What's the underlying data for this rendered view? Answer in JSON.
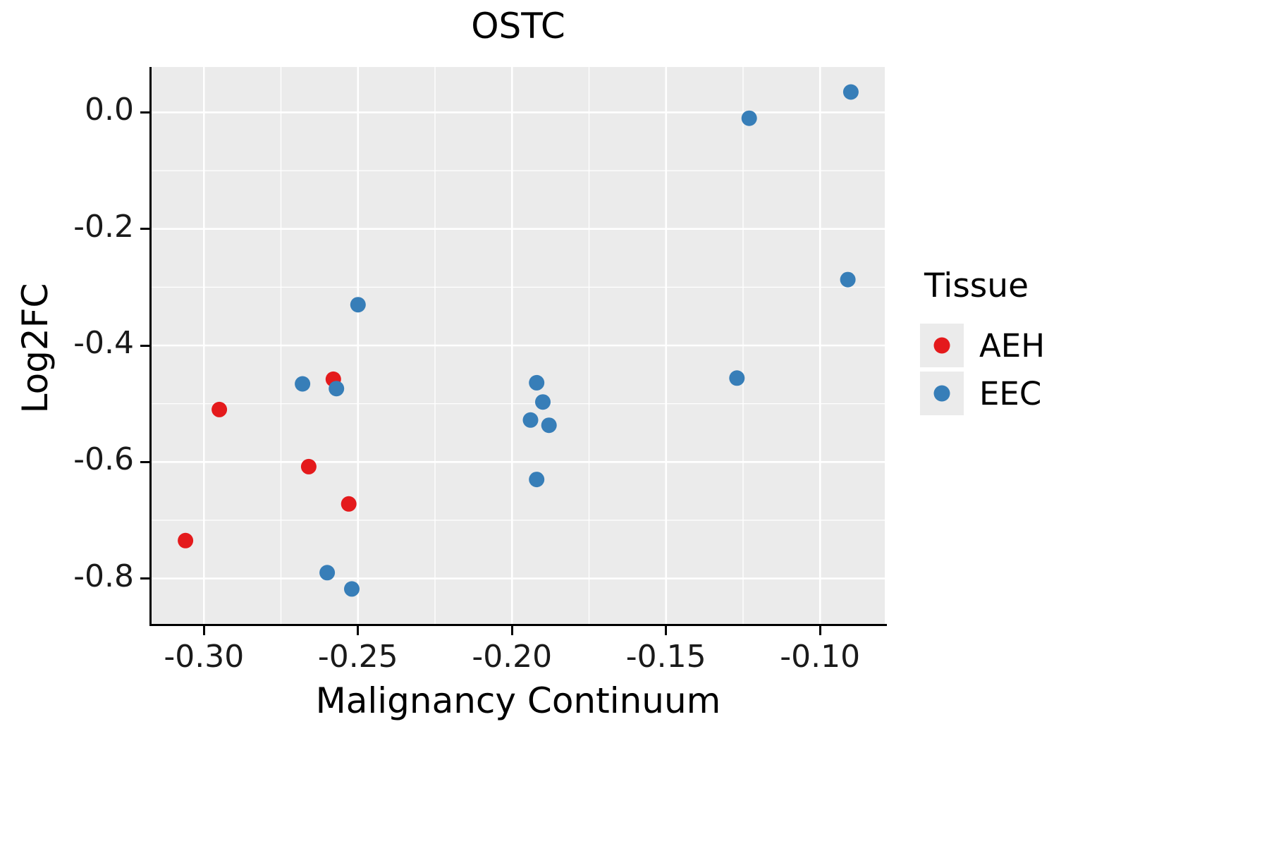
{
  "chart_data": {
    "type": "scatter",
    "title": "OSTC",
    "xlabel": "Malignancy Continuum",
    "ylabel": "Log2FC",
    "xlim": [
      -0.317,
      -0.079
    ],
    "ylim": [
      -0.878,
      0.078
    ],
    "x_ticks": [
      -0.3,
      -0.25,
      -0.2,
      -0.15,
      -0.1
    ],
    "x_tick_labels": [
      "-0.30",
      "-0.25",
      "-0.20",
      "-0.15",
      "-0.10"
    ],
    "y_ticks": [
      0.0,
      -0.2,
      -0.4,
      -0.6,
      -0.8
    ],
    "y_tick_labels": [
      "0.0",
      "-0.2",
      "-0.4",
      "-0.6",
      "-0.8"
    ],
    "grid": true,
    "panel_bg": "#EBEBEB",
    "grid_color": "#FFFFFF",
    "point_radius": 11,
    "legend": {
      "title": "Tissue",
      "position": "right",
      "entries": [
        {
          "label": "AEH",
          "color": "#E41A1C"
        },
        {
          "label": "EEC",
          "color": "#377EB8"
        }
      ]
    },
    "series": [
      {
        "name": "AEH",
        "color": "#E41A1C",
        "points": [
          [
            -0.306,
            -0.735
          ],
          [
            -0.295,
            -0.51
          ],
          [
            -0.266,
            -0.608
          ],
          [
            -0.258,
            -0.458
          ],
          [
            -0.253,
            -0.672
          ]
        ]
      },
      {
        "name": "EEC",
        "color": "#377EB8",
        "points": [
          [
            -0.268,
            -0.466
          ],
          [
            -0.257,
            -0.474
          ],
          [
            -0.25,
            -0.33
          ],
          [
            -0.26,
            -0.79
          ],
          [
            -0.252,
            -0.818
          ],
          [
            -0.192,
            -0.464
          ],
          [
            -0.19,
            -0.497
          ],
          [
            -0.194,
            -0.528
          ],
          [
            -0.188,
            -0.537
          ],
          [
            -0.192,
            -0.63
          ],
          [
            -0.127,
            -0.456
          ],
          [
            -0.123,
            -0.01
          ],
          [
            -0.09,
            0.035
          ],
          [
            -0.091,
            -0.287
          ]
        ]
      }
    ]
  }
}
